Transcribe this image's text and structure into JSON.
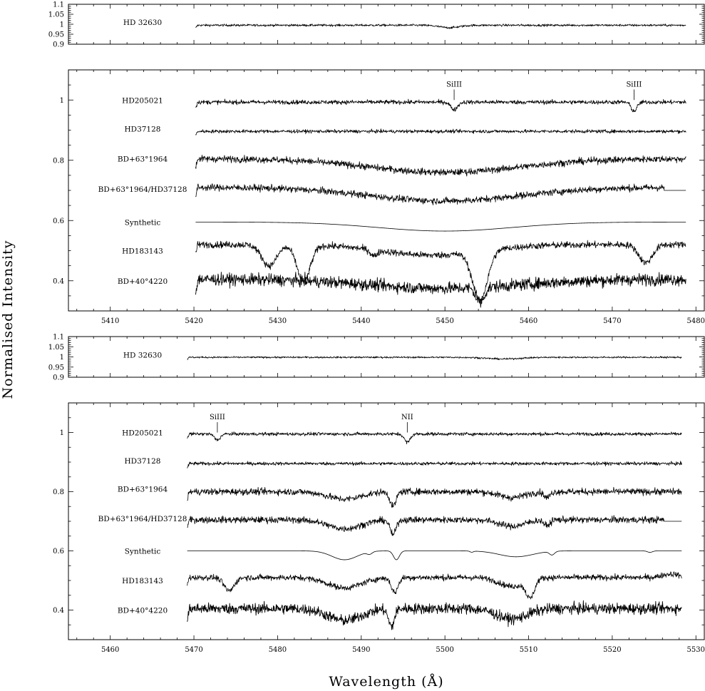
{
  "figure": {
    "ylabel": "Normalised Intensity",
    "xlabel": "Wavelength (Å)"
  },
  "chart_data": [
    {
      "type": "line",
      "panel": "reference-top",
      "xlim": [
        5405,
        5481
      ],
      "ylim": [
        0.9,
        1.1
      ],
      "yticks": [
        0.9,
        0.95,
        1,
        1.05,
        1.1
      ],
      "ytick_labels": [
        "0.9",
        "0.95",
        "1",
        "1.05",
        "1.1"
      ],
      "show_x_tick_labels": false,
      "series": [
        {
          "name": "HD 32630",
          "label_y": 1.01,
          "x_range": [
            5420.2,
            5478.8
          ],
          "offset": 0.995,
          "noise": 0.004,
          "lines": [
            {
              "c": 5450.5,
              "d": 0.012,
              "w": 1.2
            }
          ]
        }
      ]
    },
    {
      "type": "line",
      "panel": "spectra-top",
      "xlim": [
        5405,
        5481
      ],
      "ylim": [
        0.3,
        1.1
      ],
      "xticks": [
        5410,
        5420,
        5430,
        5440,
        5450,
        5460,
        5470,
        5480
      ],
      "yticks": [
        0.4,
        0.6,
        0.8,
        1
      ],
      "ytick_labels": [
        "0.4",
        "0.6",
        "0.8",
        "1"
      ],
      "annotations": [
        {
          "text": "SiIII",
          "x": 5451.1,
          "y": 1.04,
          "tick_y0": 1.0,
          "tick_y1": 1.035
        },
        {
          "text": "SiIII",
          "x": 5472.6,
          "y": 1.04,
          "tick_y0": 1.0,
          "tick_y1": 1.035
        }
      ],
      "series": [
        {
          "name": "HD205021",
          "label_y": 1.0,
          "x_range": [
            5420.2,
            5478.8
          ],
          "offset": 0.993,
          "noise": 0.005,
          "lines": [
            {
              "c": 5451.1,
              "d": 0.025,
              "w": 0.4
            },
            {
              "c": 5472.6,
              "d": 0.03,
              "w": 0.35
            }
          ]
        },
        {
          "name": "HD37128",
          "label_y": 0.905,
          "x_range": [
            5420.2,
            5478.8
          ],
          "offset": 0.896,
          "noise": 0.004,
          "lines": []
        },
        {
          "name": "BD+63°1964",
          "label_y": 0.805,
          "x_range": [
            5420.2,
            5478.8
          ],
          "offset": 0.805,
          "noise": 0.008,
          "lines": [
            {
              "c": 5450,
              "d": 0.045,
              "w": 9
            }
          ]
        },
        {
          "name": "BD+63°1964/HD37128",
          "label_y": 0.705,
          "x_range": [
            5420.2,
            5476.2
          ],
          "offset": 0.71,
          "noise": 0.008,
          "lines": [
            {
              "c": 5450,
              "d": 0.045,
              "w": 9
            }
          ],
          "flat_tail": [
            5476.2,
            5478.8,
            0.7
          ]
        },
        {
          "name": "Synthetic",
          "label_y": 0.595,
          "x_range": [
            5420.2,
            5478.8
          ],
          "offset": 0.595,
          "noise": 0.0,
          "lines": [
            {
              "c": 5450,
              "d": 0.03,
              "w": 8
            }
          ]
        },
        {
          "name": "HD183143",
          "label_y": 0.5,
          "x_range": [
            5420.2,
            5478.8
          ],
          "offset": 0.52,
          "noise": 0.008,
          "lines": [
            {
              "c": 5429.0,
              "d": 0.07,
              "w": 0.9
            },
            {
              "c": 5433.1,
              "d": 0.12,
              "w": 0.8
            },
            {
              "c": 5448.5,
              "d": 0.035,
              "w": 6
            },
            {
              "c": 5454.2,
              "d": 0.16,
              "w": 0.9
            },
            {
              "c": 5474.0,
              "d": 0.06,
              "w": 0.8
            },
            {
              "c": 5441.5,
              "d": 0.02,
              "w": 0.4
            }
          ]
        },
        {
          "name": "BD+40°4220",
          "label_y": 0.4,
          "x_range": [
            5420.2,
            5478.8
          ],
          "offset": 0.405,
          "noise": 0.014,
          "lines": [
            {
              "c": 5450,
              "d": 0.03,
              "w": 9
            },
            {
              "c": 5454.2,
              "d": 0.05,
              "w": 0.5
            }
          ]
        }
      ]
    },
    {
      "type": "line",
      "panel": "reference-bottom",
      "xlim": [
        5455,
        5531
      ],
      "ylim": [
        0.9,
        1.1
      ],
      "yticks": [
        0.9,
        0.95,
        1,
        1.05,
        1.1
      ],
      "ytick_labels": [
        "0.9",
        "0.95",
        "1",
        "1.05",
        "1.1"
      ],
      "show_x_tick_labels": false,
      "series": [
        {
          "name": "HD 32630",
          "label_y": 1.01,
          "x_range": [
            5469.2,
            5528.3
          ],
          "offset": 0.998,
          "noise": 0.003,
          "lines": [
            {
              "c": 5507,
              "d": 0.008,
              "w": 2
            }
          ]
        }
      ]
    },
    {
      "type": "line",
      "panel": "spectra-bottom",
      "xlim": [
        5455,
        5531
      ],
      "ylim": [
        0.3,
        1.1
      ],
      "xticks": [
        5460,
        5470,
        5480,
        5490,
        5500,
        5510,
        5520,
        5530
      ],
      "yticks": [
        0.4,
        0.6,
        0.8,
        1
      ],
      "ytick_labels": [
        "0.4",
        "0.6",
        "0.8",
        "1"
      ],
      "annotations": [
        {
          "text": "SiIII",
          "x": 5472.8,
          "y": 1.04,
          "tick_y0": 1.0,
          "tick_y1": 1.035
        },
        {
          "text": "NII",
          "x": 5495.5,
          "y": 1.04,
          "tick_y0": 1.0,
          "tick_y1": 1.035
        }
      ],
      "series": [
        {
          "name": "HD205021",
          "label_y": 1.0,
          "x_range": [
            5469.2,
            5528.3
          ],
          "offset": 0.995,
          "noise": 0.004,
          "lines": [
            {
              "c": 5472.8,
              "d": 0.02,
              "w": 0.35
            },
            {
              "c": 5495.5,
              "d": 0.028,
              "w": 0.35
            }
          ]
        },
        {
          "name": "HD37128",
          "label_y": 0.905,
          "x_range": [
            5469.2,
            5528.3
          ],
          "offset": 0.895,
          "noise": 0.004,
          "lines": []
        },
        {
          "name": "BD+63°1964",
          "label_y": 0.81,
          "x_range": [
            5469.2,
            5528.3
          ],
          "offset": 0.8,
          "noise": 0.008,
          "lines": [
            {
              "c": 5488,
              "d": 0.025,
              "w": 2
            },
            {
              "c": 5493.8,
              "d": 0.05,
              "w": 0.35
            },
            {
              "c": 5508,
              "d": 0.02,
              "w": 1.5
            },
            {
              "c": 5512.2,
              "d": 0.02,
              "w": 0.35
            }
          ]
        },
        {
          "name": "BD+63°1964/HD37128",
          "label_y": 0.71,
          "x_range": [
            5469.2,
            5526.2
          ],
          "offset": 0.705,
          "noise": 0.008,
          "lines": [
            {
              "c": 5488,
              "d": 0.03,
              "w": 2
            },
            {
              "c": 5493.8,
              "d": 0.05,
              "w": 0.35
            },
            {
              "c": 5508,
              "d": 0.022,
              "w": 1.5
            },
            {
              "c": 5512.2,
              "d": 0.02,
              "w": 0.35
            }
          ],
          "flat_tail": [
            5526.2,
            5528.3,
            0.7
          ]
        },
        {
          "name": "Synthetic",
          "label_y": 0.6,
          "x_range": [
            5469.2,
            5528.3
          ],
          "offset": 0.6,
          "noise": 0.0,
          "lines": [
            {
              "c": 5488,
              "d": 0.03,
              "w": 1.5
            },
            {
              "c": 5494.2,
              "d": 0.03,
              "w": 0.35
            },
            {
              "c": 5508.5,
              "d": 0.02,
              "w": 2
            },
            {
              "c": 5512.8,
              "d": 0.012,
              "w": 0.3
            },
            {
              "c": 5491.0,
              "d": 0.008,
              "w": 0.3
            },
            {
              "c": 5503.2,
              "d": 0.004,
              "w": 0.2
            },
            {
              "c": 5524.5,
              "d": 0.005,
              "w": 0.3
            }
          ]
        },
        {
          "name": "HD183143",
          "label_y": 0.5,
          "x_range": [
            5469.2,
            5528.3
          ],
          "offset": 0.51,
          "noise": 0.007,
          "lines": [
            {
              "c": 5474.2,
              "d": 0.045,
              "w": 0.6
            },
            {
              "c": 5488,
              "d": 0.035,
              "w": 2
            },
            {
              "c": 5494.0,
              "d": 0.05,
              "w": 0.4
            },
            {
              "c": 5508,
              "d": 0.03,
              "w": 1.5
            },
            {
              "c": 5510.2,
              "d": 0.06,
              "w": 0.5
            },
            {
              "c": 5527,
              "d": -0.012,
              "w": 1.0
            }
          ]
        },
        {
          "name": "BD+40°4220",
          "label_y": 0.4,
          "x_range": [
            5469.2,
            5528.3
          ],
          "offset": 0.405,
          "noise": 0.013,
          "lines": [
            {
              "c": 5488,
              "d": 0.04,
              "w": 2
            },
            {
              "c": 5493.6,
              "d": 0.06,
              "w": 0.35
            },
            {
              "c": 5508,
              "d": 0.035,
              "w": 1.8
            }
          ]
        }
      ]
    }
  ]
}
